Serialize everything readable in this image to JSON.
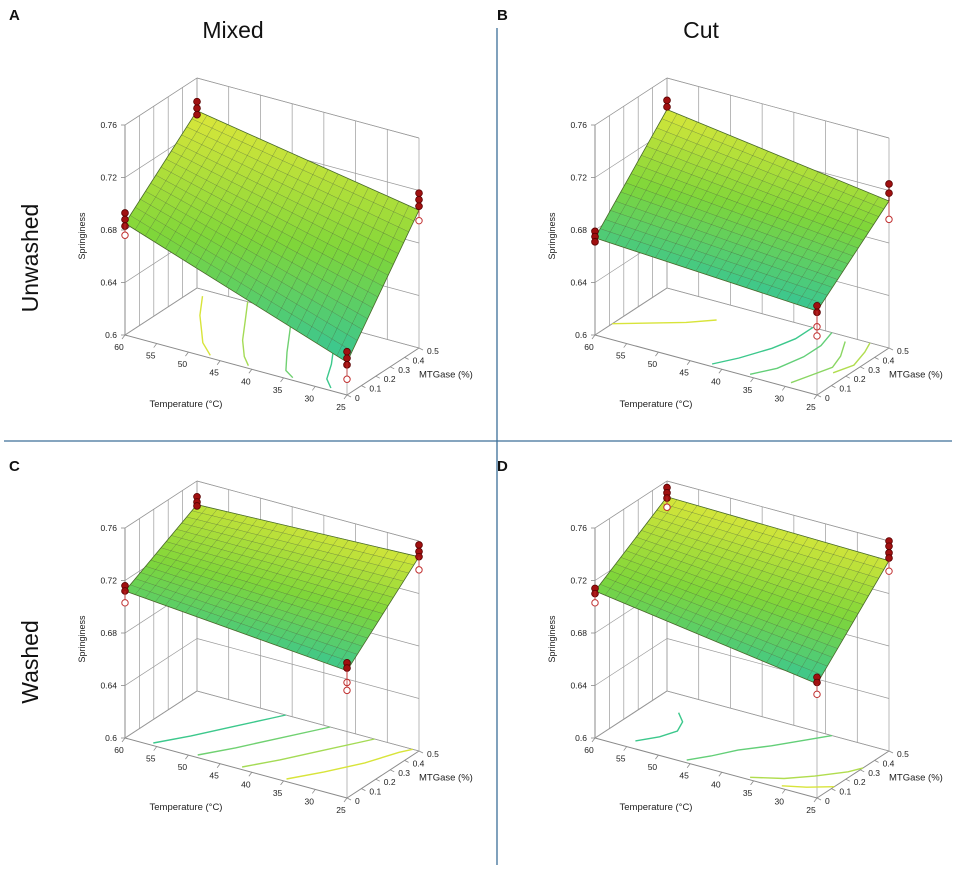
{
  "figure": {
    "column_titles": [
      "Mixed",
      "Cut"
    ],
    "row_titles": [
      "Unwashed",
      "Washed"
    ],
    "colors": {
      "divider": "#3d6f99",
      "frame": "#8a8a8a",
      "grid": "#9a9a9a",
      "marker_fill": "#a01010",
      "marker_stroke": "#5a0000",
      "marker_open": "#c03030",
      "surface_low": "#2ec4a0",
      "surface_mid": "#7fd63a",
      "surface_high": "#e4e83a",
      "contour_low": "#3cc88c",
      "contour_high": "#d8e43a"
    }
  },
  "chart_data": [
    {
      "panel": "A",
      "type": "surface3d",
      "title": "",
      "zlabel": "Springiness",
      "xlabel": "Temperature (°C)",
      "ylabel": "MTGase (%)",
      "x_ticks": [
        "60",
        "55",
        "50",
        "45",
        "40",
        "35",
        "30",
        "25"
      ],
      "y_ticks": [
        "0",
        "0.1",
        "0.2",
        "0.3",
        "0.4",
        "0.5"
      ],
      "z_ticks": [
        "0.6",
        "0.64",
        "0.68",
        "0.72",
        "0.76"
      ],
      "xlim": [
        60,
        25
      ],
      "ylim": [
        0,
        0.5
      ],
      "zlim": [
        0.6,
        0.76
      ],
      "corners": {
        "temp60_mtg0": 0.685,
        "temp25_mtg0": 0.625,
        "temp60_mtg0_5": 0.735,
        "temp25_mtg0_5": 0.705
      },
      "design_points": [
        {
          "temperature": 60,
          "mtgase": 0,
          "springiness": [
            0.693,
            0.688,
            0.683
          ]
        },
        {
          "temperature": 60,
          "mtgase": 0.5,
          "springiness": [
            0.742,
            0.737,
            0.732
          ]
        },
        {
          "temperature": 25,
          "mtgase": 0.5,
          "springiness": [
            0.718,
            0.713,
            0.708
          ]
        },
        {
          "temperature": 25,
          "mtgase": 0,
          "springiness": [
            0.633,
            0.628,
            0.623
          ]
        }
      ],
      "design_points_below": [
        {
          "temperature": 60,
          "mtgase": 0,
          "springiness": 0.676
        },
        {
          "temperature": 25,
          "mtgase": 0.5,
          "springiness": 0.697
        },
        {
          "temperature": 25,
          "mtgase": 0,
          "springiness": 0.612
        }
      ],
      "contours": [
        {
          "level": 0.7,
          "points": [
            [
              58,
              0.45
            ],
            [
              55,
              0.3
            ],
            [
              52,
              0.18
            ],
            [
              50,
              0.1
            ],
            [
              47,
              0.02
            ]
          ]
        },
        {
          "level": 0.69,
          "points": [
            [
              52,
              0.5
            ],
            [
              49,
              0.35
            ],
            [
              46,
              0.2
            ],
            [
              43,
              0.08
            ],
            [
              41,
              0.02
            ]
          ]
        },
        {
          "level": 0.68,
          "points": [
            [
              45,
              0.5
            ],
            [
              42,
              0.35
            ],
            [
              39,
              0.2
            ],
            [
              36,
              0.06
            ],
            [
              34,
              0.02
            ]
          ]
        },
        {
          "level": 0.67,
          "points": [
            [
              38,
              0.5
            ],
            [
              35,
              0.35
            ],
            [
              32,
              0.2
            ],
            [
              30,
              0.08
            ],
            [
              28,
              0.02
            ]
          ]
        }
      ]
    },
    {
      "panel": "B",
      "type": "surface3d",
      "title": "",
      "zlabel": "Springiness",
      "xlabel": "Temperature (°C)",
      "ylabel": "MTGase (%)",
      "x_ticks": [
        "60",
        "55",
        "50",
        "45",
        "40",
        "35",
        "30",
        "25"
      ],
      "y_ticks": [
        "0",
        "0.1",
        "0.2",
        "0.3",
        "0.4",
        "0.5"
      ],
      "z_ticks": [
        "0.6",
        "0.64",
        "0.68",
        "0.72",
        "0.76"
      ],
      "xlim": [
        60,
        25
      ],
      "ylim": [
        0,
        0.5
      ],
      "zlim": [
        0.6,
        0.76
      ],
      "corners": {
        "temp60_mtg0": 0.674,
        "temp25_mtg0": 0.664,
        "temp60_mtg0_5": 0.736,
        "temp25_mtg0_5": 0.712
      },
      "design_points": [
        {
          "temperature": 60,
          "mtgase": 0,
          "springiness": [
            0.679,
            0.675,
            0.671
          ]
        },
        {
          "temperature": 60,
          "mtgase": 0.5,
          "springiness": [
            0.743,
            0.738
          ]
        },
        {
          "temperature": 25,
          "mtgase": 0.5,
          "springiness": [
            0.725,
            0.718
          ]
        },
        {
          "temperature": 25,
          "mtgase": 0,
          "springiness": [
            0.668,
            0.663
          ]
        }
      ],
      "design_points_below": [
        {
          "temperature": 25,
          "mtgase": 0.5,
          "springiness": 0.698
        },
        {
          "temperature": 25,
          "mtgase": 0,
          "springiness": 0.652
        },
        {
          "temperature": 25,
          "mtgase": 0,
          "springiness": 0.645
        }
      ],
      "contours": [
        {
          "level": 0.71,
          "points": [
            [
              60,
              0.12
            ],
            [
              56,
              0.2
            ],
            [
              52,
              0.28
            ],
            [
              49,
              0.36
            ]
          ]
        },
        {
          "level": 0.69,
          "points": [
            [
              42,
              0.02
            ],
            [
              40,
              0.12
            ],
            [
              38,
              0.26
            ],
            [
              37,
              0.38
            ],
            [
              37,
              0.5
            ]
          ]
        },
        {
          "level": 0.695,
          "points": [
            [
              36,
              0.02
            ],
            [
              34,
              0.12
            ],
            [
              33,
              0.26
            ],
            [
              33,
              0.38
            ],
            [
              34,
              0.5
            ]
          ]
        },
        {
          "level": 0.7,
          "points": [
            [
              30,
              0.04
            ],
            [
              29,
              0.14
            ],
            [
              28,
              0.24
            ],
            [
              29,
              0.34
            ],
            [
              31,
              0.46
            ]
          ]
        },
        {
          "level": 0.705,
          "points": [
            [
              27,
              0.2
            ],
            [
              26,
              0.3
            ],
            [
              27,
              0.42
            ],
            [
              28,
              0.5
            ]
          ]
        }
      ]
    },
    {
      "panel": "C",
      "type": "surface3d",
      "title": "",
      "zlabel": "Springiness",
      "xlabel": "Temperature (°C)",
      "ylabel": "MTGase (%)",
      "x_ticks": [
        "60",
        "55",
        "50",
        "45",
        "40",
        "35",
        "30",
        "25"
      ],
      "y_ticks": [
        "0",
        "0.1",
        "0.2",
        "0.3",
        "0.4",
        "0.5"
      ],
      "z_ticks": [
        "0.6",
        "0.64",
        "0.68",
        "0.72",
        "0.76"
      ],
      "xlim": [
        60,
        25
      ],
      "ylim": [
        0,
        0.5
      ],
      "zlim": [
        0.6,
        0.76
      ],
      "corners": {
        "temp60_mtg0": 0.712,
        "temp25_mtg0": 0.697,
        "temp60_mtg0_5": 0.742,
        "temp25_mtg0_5": 0.748
      },
      "design_points": [
        {
          "temperature": 60,
          "mtgase": 0,
          "springiness": [
            0.716,
            0.712
          ]
        },
        {
          "temperature": 60,
          "mtgase": 0.5,
          "springiness": [
            0.748,
            0.744,
            0.741
          ]
        },
        {
          "temperature": 25,
          "mtgase": 0.5,
          "springiness": [
            0.757,
            0.752,
            0.748
          ]
        },
        {
          "temperature": 25,
          "mtgase": 0,
          "springiness": [
            0.703,
            0.699
          ]
        }
      ],
      "design_points_below": [
        {
          "temperature": 60,
          "mtgase": 0,
          "springiness": 0.703
        },
        {
          "temperature": 25,
          "mtgase": 0.5,
          "springiness": 0.738
        },
        {
          "temperature": 25,
          "mtgase": 0,
          "springiness": 0.688
        },
        {
          "temperature": 25,
          "mtgase": 0,
          "springiness": 0.682
        }
      ],
      "contours": [
        {
          "level": 0.715,
          "points": [
            [
              56,
              0.02
            ],
            [
              53,
              0.15
            ],
            [
              50,
              0.3
            ],
            [
              47,
              0.45
            ],
            [
              46,
              0.5
            ]
          ]
        },
        {
          "level": 0.72,
          "points": [
            [
              49,
              0.02
            ],
            [
              46,
              0.15
            ],
            [
              43,
              0.3
            ],
            [
              40,
              0.45
            ],
            [
              39,
              0.5
            ]
          ]
        },
        {
          "level": 0.725,
          "points": [
            [
              42,
              0.02
            ],
            [
              39,
              0.15
            ],
            [
              36,
              0.3
            ],
            [
              33,
              0.45
            ],
            [
              32,
              0.5
            ]
          ]
        },
        {
          "level": 0.73,
          "points": [
            [
              35,
              0.02
            ],
            [
              32,
              0.15
            ],
            [
              29,
              0.3
            ],
            [
              27,
              0.45
            ],
            [
              26,
              0.5
            ]
          ]
        }
      ]
    },
    {
      "panel": "D",
      "type": "surface3d",
      "title": "",
      "zlabel": "Springiness",
      "xlabel": "Temperature (°C)",
      "ylabel": "MTGase (%)",
      "x_ticks": [
        "60",
        "55",
        "50",
        "45",
        "40",
        "35",
        "30",
        "25"
      ],
      "y_ticks": [
        "0",
        "0.1",
        "0.2",
        "0.3",
        "0.4",
        "0.5"
      ],
      "z_ticks": [
        "0.6",
        "0.64",
        "0.68",
        "0.72",
        "0.76"
      ],
      "xlim": [
        60,
        25
      ],
      "ylim": [
        0,
        0.5
      ],
      "zlim": [
        0.6,
        0.76
      ],
      "corners": {
        "temp60_mtg0": 0.712,
        "temp25_mtg0": 0.687,
        "temp60_mtg0_5": 0.748,
        "temp25_mtg0_5": 0.745
      },
      "design_points": [
        {
          "temperature": 60,
          "mtgase": 0,
          "springiness": [
            0.714,
            0.71
          ]
        },
        {
          "temperature": 60,
          "mtgase": 0.5,
          "springiness": [
            0.755,
            0.751,
            0.747
          ]
        },
        {
          "temperature": 25,
          "mtgase": 0.5,
          "springiness": [
            0.76,
            0.756,
            0.751,
            0.747
          ]
        },
        {
          "temperature": 25,
          "mtgase": 0,
          "springiness": [
            0.692,
            0.688
          ]
        }
      ],
      "design_points_below": [
        {
          "temperature": 60,
          "mtgase": 0,
          "springiness": 0.703
        },
        {
          "temperature": 60,
          "mtgase": 0.5,
          "springiness": 0.74
        },
        {
          "temperature": 25,
          "mtgase": 0.5,
          "springiness": 0.737
        },
        {
          "temperature": 25,
          "mtgase": 0,
          "springiness": 0.679
        }
      ],
      "contours": [
        {
          "level": 0.715,
          "points": [
            [
              55,
              0.06
            ],
            [
              53,
              0.14
            ],
            [
              52,
              0.22
            ],
            [
              53,
              0.3
            ],
            [
              55,
              0.36
            ]
          ]
        },
        {
          "level": 0.72,
          "points": [
            [
              46,
              0.02
            ],
            [
              44,
              0.1
            ],
            [
              42,
              0.2
            ],
            [
              39,
              0.3
            ],
            [
              36,
              0.42
            ],
            [
              34,
              0.5
            ]
          ]
        },
        {
          "level": 0.73,
          "points": [
            [
              36,
              0.02
            ],
            [
              32,
              0.08
            ],
            [
              29,
              0.16
            ],
            [
              26,
              0.26
            ],
            [
              25,
              0.32
            ]
          ]
        },
        {
          "level": 0.735,
          "points": [
            [
              31,
              0.02
            ],
            [
              28,
              0.06
            ],
            [
              25,
              0.12
            ]
          ]
        }
      ]
    }
  ]
}
